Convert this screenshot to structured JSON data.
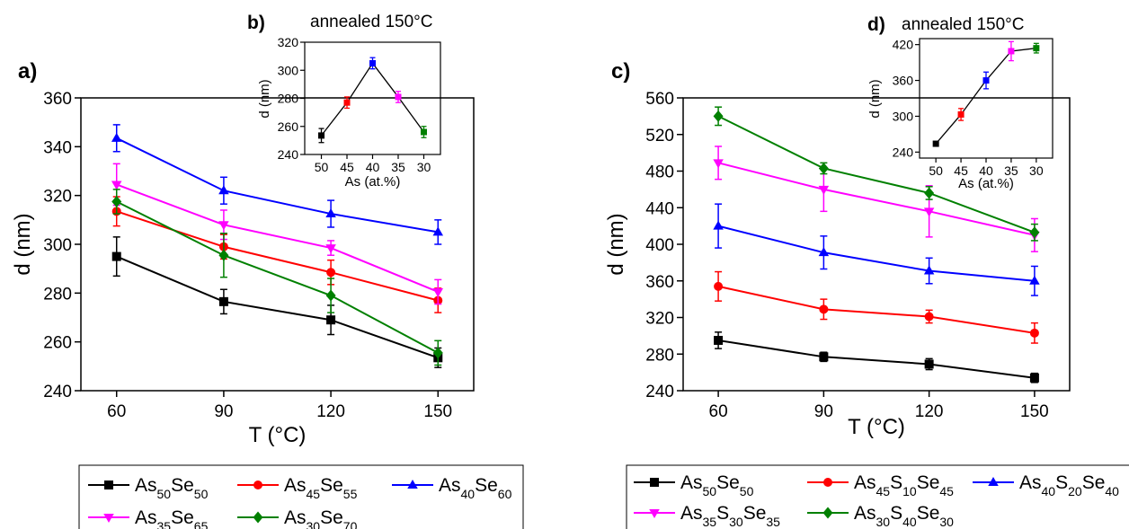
{
  "panels": {
    "a": "a)",
    "b": "b)",
    "c": "c)",
    "d": "d)"
  },
  "chart_data": [
    {
      "id": "a",
      "type": "line",
      "xlabel": "T (°C)",
      "ylabel": "d (nm)",
      "xlim": [
        50,
        160
      ],
      "ylim": [
        240,
        360
      ],
      "xticks": [
        60,
        90,
        120,
        150
      ],
      "yticks": [
        240,
        260,
        280,
        300,
        320,
        340,
        360
      ],
      "x": [
        60,
        90,
        120,
        150
      ],
      "series": [
        {
          "name": "As50Se50",
          "name_parts": [
            [
              "As",
              "50"
            ],
            [
              "Se",
              "50"
            ]
          ],
          "color": "#000000",
          "marker": "square",
          "values": [
            295,
            276.5,
            269,
            253.5
          ],
          "errors": [
            8,
            5,
            6,
            4
          ]
        },
        {
          "name": "As45Se55",
          "name_parts": [
            [
              "As",
              "45"
            ],
            [
              "Se",
              "55"
            ]
          ],
          "color": "#ff0000",
          "marker": "circle",
          "values": [
            313.5,
            299,
            288.5,
            277
          ],
          "errors": [
            6,
            5,
            5,
            5
          ]
        },
        {
          "name": "As40Se60",
          "name_parts": [
            [
              "As",
              "40"
            ],
            [
              "Se",
              "60"
            ]
          ],
          "color": "#0000ff",
          "marker": "triangle-up",
          "values": [
            343.5,
            322,
            312.5,
            305
          ],
          "errors": [
            5.5,
            5.5,
            5.5,
            5
          ]
        },
        {
          "name": "As35Se65",
          "name_parts": [
            [
              "As",
              "35"
            ],
            [
              "Se",
              "65"
            ]
          ],
          "color": "#ff00ff",
          "marker": "triangle-down",
          "values": [
            324.5,
            308,
            298.5,
            280.5
          ],
          "errors": [
            8.5,
            6,
            3,
            5
          ]
        },
        {
          "name": "As30Se70",
          "name_parts": [
            [
              "As",
              "30"
            ],
            [
              "Se",
              "70"
            ]
          ],
          "color": "#008000",
          "marker": "diamond",
          "values": [
            317.5,
            295.5,
            279,
            255.5
          ],
          "errors": [
            5,
            9,
            7,
            5
          ]
        }
      ]
    },
    {
      "id": "b",
      "type": "line",
      "title": "annealed 150°C",
      "xlabel": "As (at.%)",
      "ylabel": "d (nm)",
      "ylim": [
        240,
        320
      ],
      "yticks": [
        240,
        260,
        280,
        300,
        320
      ],
      "categories": [
        "50",
        "45",
        "40",
        "35",
        "30"
      ],
      "values": [
        253.5,
        277,
        305,
        281,
        256
      ],
      "errors": [
        5,
        4,
        4,
        4,
        4
      ],
      "point_colors": [
        "#000000",
        "#ff0000",
        "#0000ff",
        "#ff00ff",
        "#008000"
      ]
    },
    {
      "id": "c",
      "type": "line",
      "xlabel": "T (°C)",
      "ylabel": "d (nm)",
      "xlim": [
        50,
        160
      ],
      "ylim": [
        240,
        560
      ],
      "xticks": [
        60,
        90,
        120,
        150
      ],
      "yticks": [
        240,
        280,
        320,
        360,
        400,
        440,
        480,
        520,
        560
      ],
      "x": [
        60,
        90,
        120,
        150
      ],
      "series": [
        {
          "name": "As50Se50",
          "name_parts": [
            [
              "As",
              "50"
            ],
            [
              "Se",
              "50"
            ]
          ],
          "color": "#000000",
          "marker": "square",
          "values": [
            295,
            277,
            269,
            254
          ],
          "errors": [
            9,
            5,
            6,
            5
          ]
        },
        {
          "name": "As45S10Se45",
          "name_parts": [
            [
              "As",
              "45"
            ],
            [
              "S",
              "10"
            ],
            [
              "Se",
              "45"
            ]
          ],
          "color": "#ff0000",
          "marker": "circle",
          "values": [
            354,
            329,
            321,
            303
          ],
          "errors": [
            16,
            11,
            7,
            11
          ]
        },
        {
          "name": "As40S20Se40",
          "name_parts": [
            [
              "As",
              "40"
            ],
            [
              "S",
              "20"
            ],
            [
              "Se",
              "40"
            ]
          ],
          "color": "#0000ff",
          "marker": "triangle-up",
          "values": [
            420,
            391,
            371,
            360
          ],
          "errors": [
            24,
            18,
            14,
            16
          ]
        },
        {
          "name": "As35S30Se35",
          "name_parts": [
            [
              "As",
              "35"
            ],
            [
              "S",
              "30"
            ],
            [
              "Se",
              "35"
            ]
          ],
          "color": "#ff00ff",
          "marker": "triangle-down",
          "values": [
            489,
            460,
            436,
            410
          ],
          "errors": [
            18,
            24,
            28,
            18
          ]
        },
        {
          "name": "As30S40Se30",
          "name_parts": [
            [
              "As",
              "30"
            ],
            [
              "S",
              "40"
            ],
            [
              "Se",
              "30"
            ]
          ],
          "color": "#008000",
          "marker": "diamond",
          "values": [
            540,
            483,
            456,
            413
          ],
          "errors": [
            10,
            6,
            7,
            9
          ]
        }
      ]
    },
    {
      "id": "d",
      "type": "line",
      "title": "annealed 150°C",
      "xlabel": "As (at.%)",
      "ylabel": "d (nm)",
      "ylim": [
        230,
        430
      ],
      "yticks": [
        240,
        300,
        360,
        420
      ],
      "categories": [
        "50",
        "45",
        "40",
        "35",
        "30"
      ],
      "values": [
        254,
        303,
        360,
        409,
        414
      ],
      "errors": [
        3,
        10,
        14,
        16,
        8
      ],
      "point_colors": [
        "#000000",
        "#ff0000",
        "#0000ff",
        "#ff00ff",
        "#008000"
      ]
    }
  ]
}
